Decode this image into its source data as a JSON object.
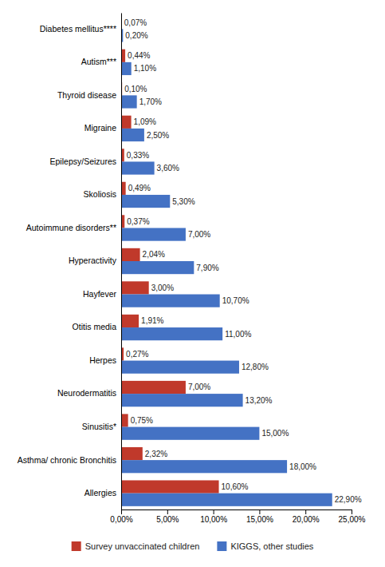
{
  "chart_data": {
    "type": "bar",
    "orientation": "horizontal",
    "categories": [
      "Diabetes mellitus****",
      "Autism***",
      "Thyroid disease",
      "Migraine",
      "Epilepsy/Seizures",
      "Skoliosis",
      "Autoimmune disorders**",
      "Hyperactivity",
      "Hayfever",
      "Otitis media",
      "Herpes",
      "Neurodermatitis",
      "Sinusitis*",
      "Asthma/ chronic Bronchitis",
      "Allergies"
    ],
    "series": [
      {
        "name": "Survey unvaccinated children",
        "color": "#C0392B",
        "values": [
          0.07,
          0.44,
          0.1,
          1.09,
          0.33,
          0.49,
          0.37,
          2.04,
          3.0,
          1.91,
          0.27,
          7.0,
          0.75,
          2.32,
          10.6
        ],
        "value_labels": [
          "0,07%",
          "0,44%",
          "0,10%",
          "1,09%",
          "0,33%",
          "0,49%",
          "0,37%",
          "2,04%",
          "3,00%",
          "1,91%",
          "0,27%",
          "7,00%",
          "0,75%",
          "2,32%",
          "10,60%"
        ]
      },
      {
        "name": "KIGGS, other studies",
        "color": "#4472C4",
        "values": [
          0.2,
          1.1,
          1.7,
          2.5,
          3.6,
          5.3,
          7.0,
          7.9,
          10.7,
          11.0,
          12.8,
          13.2,
          15.0,
          18.0,
          22.9
        ],
        "value_labels": [
          "0,20%",
          "1,10%",
          "1,70%",
          "2,50%",
          "3,60%",
          "5,30%",
          "7,00%",
          "7,90%",
          "10,70%",
          "11,00%",
          "12,80%",
          "13,20%",
          "15,00%",
          "18,00%",
          "22,90%"
        ]
      }
    ],
    "xlim": [
      0,
      25
    ],
    "xticks": [
      {
        "value": 0,
        "label": "0,00%"
      },
      {
        "value": 5,
        "label": "5,00%"
      },
      {
        "value": 10,
        "label": "10,00%"
      },
      {
        "value": 15,
        "label": "15,00%"
      },
      {
        "value": 20,
        "label": "20,00%"
      },
      {
        "value": 25,
        "label": "25,00%"
      }
    ],
    "data_labels": true,
    "legend": "bottom",
    "grid": false
  }
}
